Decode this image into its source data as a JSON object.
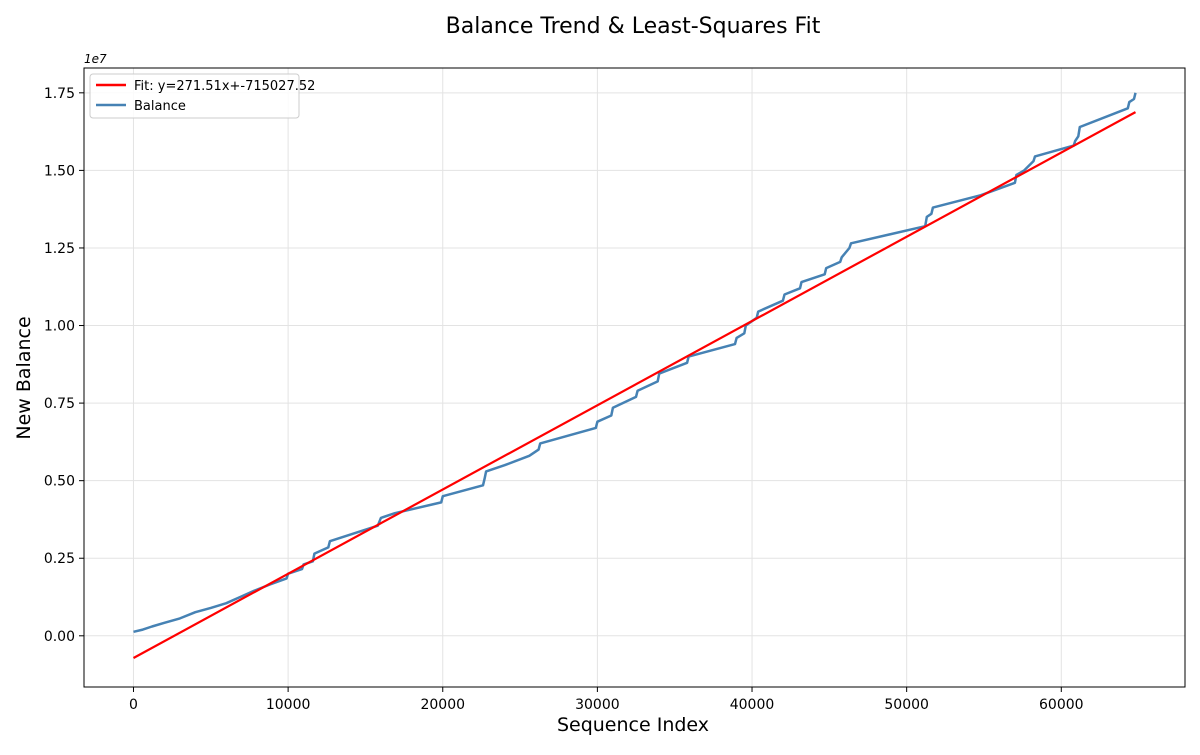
{
  "chart_data": {
    "type": "line",
    "title": "Balance Trend & Least-Squares Fit",
    "xlabel": "Sequence Index",
    "ylabel": "New Balance",
    "y_offset_label": "1e7",
    "xlim": [
      -3200,
      68000
    ],
    "ylim": [
      -1650000,
      18300000
    ],
    "x_ticks": [
      0,
      10000,
      20000,
      30000,
      40000,
      50000,
      60000
    ],
    "x_tick_labels": [
      "0",
      "10000",
      "20000",
      "30000",
      "40000",
      "50000",
      "60000"
    ],
    "y_ticks": [
      0,
      2500000,
      5000000,
      7500000,
      10000000,
      12500000,
      15000000,
      17500000
    ],
    "y_tick_labels": [
      "0.00",
      "0.25",
      "0.50",
      "0.75",
      "1.00",
      "1.25",
      "1.50",
      "1.75"
    ],
    "grid": true,
    "legend_position": "top-left",
    "series": [
      {
        "name": "Fit: y=271.51x+-715027.52",
        "kind": "fit",
        "color": "#ff0000",
        "x": [
          0,
          64800
        ],
        "y": [
          -715027.52,
          16878820
        ]
      },
      {
        "name": "Balance",
        "kind": "data",
        "color": "#4682b4",
        "x": [
          0,
          600,
          1200,
          2000,
          3000,
          4000,
          5000,
          6000,
          6900,
          7800,
          8800,
          9900,
          10000,
          10900,
          11000,
          11600,
          11700,
          12600,
          12700,
          15800,
          16000,
          16900,
          19900,
          20000,
          22600,
          22700,
          22800,
          24000,
          25600,
          26200,
          26300,
          29900,
          30000,
          30900,
          31000,
          32500,
          32600,
          33900,
          34000,
          35800,
          35900,
          38900,
          39000,
          39500,
          39600,
          40300,
          40400,
          42000,
          42100,
          43100,
          43200,
          44700,
          44800,
          45700,
          45800,
          46300,
          46400,
          51200,
          51300,
          51600,
          51700,
          54800,
          57000,
          57100,
          57600,
          58200,
          58300,
          60800,
          60900,
          61100,
          61200,
          64300,
          64400,
          64700,
          64800
        ],
        "y": [
          130000,
          200000,
          300000,
          420000,
          560000,
          760000,
          900000,
          1050000,
          1250000,
          1450000,
          1650000,
          1850000,
          2000000,
          2150000,
          2300000,
          2400000,
          2650000,
          2850000,
          3050000,
          3550000,
          3800000,
          3950000,
          4300000,
          4500000,
          4850000,
          5050000,
          5300000,
          5500000,
          5800000,
          6000000,
          6200000,
          6700000,
          6900000,
          7100000,
          7350000,
          7700000,
          7900000,
          8200000,
          8450000,
          8800000,
          9000000,
          9400000,
          9600000,
          9750000,
          10000000,
          10250000,
          10450000,
          10800000,
          11000000,
          11200000,
          11400000,
          11650000,
          11850000,
          12050000,
          12200000,
          12500000,
          12650000,
          13200000,
          13500000,
          13600000,
          13800000,
          14200000,
          14600000,
          14850000,
          15000000,
          15300000,
          15450000,
          15800000,
          15950000,
          16100000,
          16400000,
          17000000,
          17200000,
          17300000,
          17500000
        ]
      }
    ]
  }
}
